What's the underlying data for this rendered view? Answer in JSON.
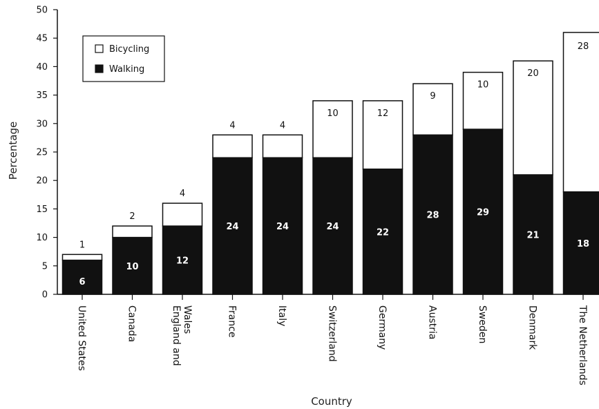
{
  "chart_data": {
    "type": "bar",
    "stacked": true,
    "title": "",
    "xlabel": "Country",
    "ylabel": "Percentage",
    "ylim": [
      0,
      50
    ],
    "yticks": [
      0,
      5,
      10,
      15,
      20,
      25,
      30,
      35,
      40,
      45,
      50
    ],
    "categories": [
      "United States",
      "Canada",
      "England and Wales",
      "France",
      "Italy",
      "Switzerland",
      "Germany",
      "Austria",
      "Sweden",
      "Denmark",
      "The Netherlands"
    ],
    "category_lines": [
      [
        "United States"
      ],
      [
        "Canada"
      ],
      [
        "England and",
        "Wales"
      ],
      [
        "France"
      ],
      [
        "Italy"
      ],
      [
        "Switzerland"
      ],
      [
        "Germany"
      ],
      [
        "Austria"
      ],
      [
        "Sweden"
      ],
      [
        "Denmark"
      ],
      [
        "The Netherlands"
      ]
    ],
    "series": [
      {
        "name": "Walking",
        "color": "#111111",
        "values": [
          6,
          10,
          12,
          24,
          24,
          24,
          22,
          28,
          29,
          21,
          18
        ]
      },
      {
        "name": "Bicycling",
        "color": "#ffffff",
        "values": [
          1,
          2,
          4,
          4,
          4,
          10,
          12,
          9,
          10,
          20,
          28
        ]
      }
    ],
    "grid": false,
    "legend_position": "top-left"
  }
}
